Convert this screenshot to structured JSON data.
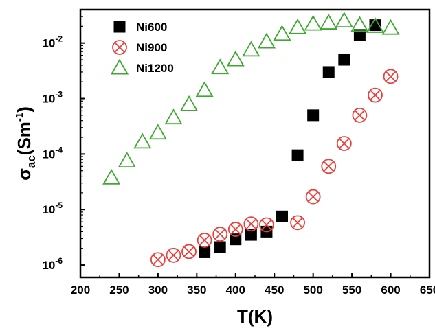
{
  "chart_data": {
    "type": "scatter",
    "xlabel": "T(K)",
    "ylabel_main": "σ",
    "ylabel_sub": "ac",
    "ylabel_unit": "(Sm",
    "ylabel_exp": "-1",
    "ylabel_close": ")",
    "xlim": [
      200,
      650
    ],
    "ylim": [
      6e-07,
      0.04
    ],
    "yscale": "log",
    "xticks": [
      200,
      250,
      300,
      350,
      400,
      450,
      500,
      550,
      600,
      650
    ],
    "yticks": [
      {
        "value": 1e-06,
        "base": "10",
        "exp": "-6"
      },
      {
        "value": 1e-05,
        "base": "10",
        "exp": "-5"
      },
      {
        "value": 0.0001,
        "base": "10",
        "exp": "-4"
      },
      {
        "value": 0.001,
        "base": "10",
        "exp": "-3"
      },
      {
        "value": 0.01,
        "base": "10",
        "exp": "-2"
      }
    ],
    "grid": false,
    "legend_position": "top-left",
    "series": [
      {
        "name": "Ni600",
        "marker": "filled-square",
        "color": "#000000",
        "x": [
          360,
          380,
          400,
          420,
          440,
          460,
          480,
          500,
          520,
          540,
          560,
          580
        ],
        "y": [
          1.7e-06,
          2.1e-06,
          2.9e-06,
          3.5e-06,
          4e-06,
          7.5e-06,
          9.5e-05,
          0.0005,
          0.003,
          0.005,
          0.014,
          0.021
        ]
      },
      {
        "name": "Ni900",
        "marker": "circle-x",
        "color": "#e8403c",
        "x": [
          300,
          320,
          340,
          360,
          380,
          400,
          420,
          440,
          480,
          500,
          520,
          540,
          560,
          580,
          600
        ],
        "y": [
          1.25e-06,
          1.5e-06,
          1.75e-06,
          2.8e-06,
          3.6e-06,
          4.4e-06,
          5.5e-06,
          5.3e-06,
          5.8e-06,
          1.7e-05,
          6e-05,
          0.000155,
          0.0005,
          0.00115,
          0.0025
        ]
      },
      {
        "name": "Ni1200",
        "marker": "open-triangle",
        "color": "#3ea832",
        "x": [
          240,
          260,
          280,
          300,
          320,
          340,
          360,
          380,
          400,
          420,
          440,
          460,
          480,
          500,
          520,
          540,
          560,
          580,
          600
        ],
        "y": [
          3.7e-05,
          7.5e-05,
          0.000165,
          0.00024,
          0.00045,
          0.00078,
          0.0014,
          0.0036,
          0.005,
          0.0075,
          0.0105,
          0.0145,
          0.019,
          0.022,
          0.023,
          0.025,
          0.021,
          0.02,
          0.0185
        ]
      }
    ]
  }
}
